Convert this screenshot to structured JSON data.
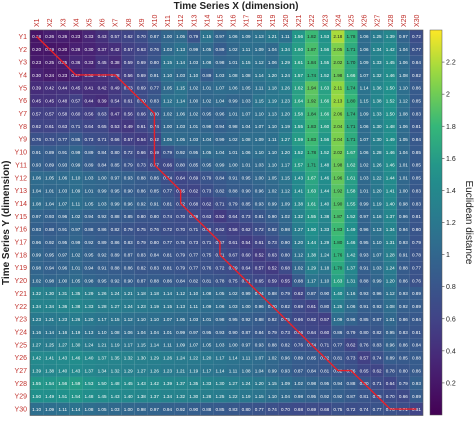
{
  "chart_data": {
    "type": "heatmap",
    "title": "Time Series X (dimension)",
    "xlabel": "",
    "ylabel": "Time Series Y (dimension)",
    "colorbar_label": "Euclidean distance",
    "colormap": "viridis",
    "clim": [
      0,
      2.4
    ],
    "colorbar_ticks": [
      0.2,
      0.4,
      0.6,
      0.8,
      1,
      1.2,
      1.4,
      1.6,
      1.8,
      2,
      2.2
    ],
    "x_categories": [
      "X1",
      "X2",
      "X3",
      "X4",
      "X5",
      "X6",
      "X7",
      "X8",
      "X9",
      "X10",
      "X11",
      "X12",
      "X13",
      "X14",
      "X15",
      "X16",
      "X17",
      "X18",
      "X19",
      "X20",
      "X21",
      "X22",
      "X23",
      "X24",
      "X25",
      "X26",
      "X27",
      "X28",
      "X29",
      "X30"
    ],
    "y_categories": [
      "Y1",
      "Y2",
      "Y3",
      "Y4",
      "Y5",
      "Y6",
      "Y7",
      "Y8",
      "Y9",
      "Y10",
      "Y11",
      "Y12",
      "Y13",
      "Y14",
      "Y15",
      "Y16",
      "Y17",
      "Y18",
      "Y19",
      "Y20",
      "Y21",
      "Y22",
      "Y23",
      "Y24",
      "Y25",
      "Y26",
      "Y27",
      "Y28",
      "Y29",
      "Y30"
    ],
    "values": [
      [
        0.18,
        0.26,
        0.26,
        0.23,
        0.33,
        0.43,
        0.57,
        0.62,
        0.7,
        0.87,
        1.0,
        1.05,
        0.79,
        1.15,
        0.97,
        1.06,
        1.09,
        1.13,
        1.21,
        1.11,
        1.56,
        1.82,
        1.53,
        2.18,
        1.78,
        1.06,
        1.25,
        1.39,
        0.97,
        0.72
      ],
      [
        0.2,
        0.19,
        0.2,
        0.28,
        0.3,
        0.37,
        0.42,
        0.57,
        0.63,
        0.76,
        1.03,
        1.13,
        0.99,
        1.05,
        0.89,
        1.02,
        1.11,
        1.09,
        1.04,
        1.34,
        1.6,
        1.87,
        1.56,
        2.05,
        1.71,
        1.06,
        1.34,
        1.42,
        1.04,
        0.77
      ],
      [
        0.23,
        0.25,
        0.25,
        0.36,
        0.33,
        0.45,
        0.38,
        0.59,
        0.69,
        0.8,
        1.15,
        1.14,
        1.03,
        1.08,
        0.98,
        1.01,
        1.15,
        1.12,
        1.06,
        1.29,
        1.61,
        1.84,
        1.55,
        2.02,
        1.7,
        1.09,
        1.33,
        1.45,
        1.06,
        0.84
      ],
      [
        0.3,
        0.24,
        0.23,
        0.27,
        0.38,
        0.41,
        0.48,
        0.56,
        0.69,
        0.91,
        1.1,
        1.03,
        1.1,
        0.89,
        1.03,
        1.08,
        1.08,
        1.14,
        1.2,
        1.24,
        1.57,
        1.74,
        1.52,
        1.98,
        1.66,
        1.07,
        1.32,
        1.46,
        1.08,
        0.82
      ],
      [
        0.39,
        0.42,
        0.44,
        0.45,
        0.41,
        0.42,
        0.49,
        0.63,
        0.69,
        0.77,
        1.05,
        1.15,
        1.02,
        1.01,
        1.07,
        1.06,
        1.05,
        1.11,
        1.18,
        1.26,
        1.62,
        1.94,
        1.63,
        2.11,
        1.74,
        1.14,
        1.36,
        1.5,
        1.1,
        0.86
      ],
      [
        0.45,
        0.45,
        0.48,
        0.57,
        0.44,
        0.39,
        0.54,
        0.61,
        0.7,
        0.83,
        1.12,
        1.14,
        1.0,
        1.02,
        1.04,
        0.99,
        1.03,
        1.15,
        1.19,
        1.23,
        1.64,
        1.92,
        1.66,
        2.13,
        1.8,
        1.15,
        1.38,
        1.52,
        1.12,
        0.85
      ],
      [
        0.57,
        0.57,
        0.58,
        0.6,
        0.56,
        0.63,
        0.47,
        0.56,
        0.66,
        0.8,
        1.02,
        1.06,
        1.02,
        0.95,
        0.96,
        1.01,
        1.07,
        1.1,
        1.13,
        1.2,
        1.58,
        1.84,
        1.66,
        2.06,
        1.74,
        1.09,
        1.33,
        1.5,
        1.08,
        0.83
      ],
      [
        0.62,
        0.61,
        0.63,
        0.71,
        0.64,
        0.65,
        0.53,
        0.49,
        0.61,
        0.74,
        1.0,
        1.03,
        1.01,
        0.98,
        0.94,
        0.98,
        1.04,
        1.07,
        1.1,
        1.19,
        1.55,
        1.83,
        1.6,
        2.04,
        1.71,
        1.06,
        1.3,
        1.48,
        1.06,
        0.81
      ],
      [
        0.76,
        0.74,
        0.77,
        0.85,
        0.73,
        0.71,
        0.66,
        0.57,
        0.54,
        0.62,
        1.05,
        1.05,
        1.03,
        1.04,
        0.99,
        1.02,
        1.08,
        1.09,
        1.11,
        1.27,
        1.59,
        1.83,
        1.56,
        2.04,
        1.71,
        1.07,
        1.3,
        1.49,
        1.05,
        0.84
      ],
      [
        0.91,
        0.89,
        0.91,
        0.99,
        0.89,
        0.84,
        0.8,
        0.72,
        0.66,
        0.59,
        0.79,
        0.92,
        0.95,
        1.05,
        1.04,
        1.01,
        1.06,
        1.1,
        1.1,
        1.2,
        1.52,
        1.78,
        1.52,
        2.02,
        1.67,
        1.06,
        1.28,
        1.46,
        1.04,
        0.85
      ],
      [
        0.93,
        0.89,
        0.93,
        0.99,
        0.89,
        0.84,
        0.85,
        0.79,
        0.73,
        0.67,
        0.66,
        0.8,
        0.85,
        0.95,
        0.99,
        1.0,
        1.01,
        1.03,
        1.1,
        1.17,
        1.57,
        1.71,
        1.48,
        1.98,
        1.62,
        1.02,
        1.26,
        1.46,
        1.01,
        0.85
      ],
      [
        1.06,
        1.05,
        1.06,
        1.1,
        1.03,
        1.0,
        0.97,
        0.93,
        0.88,
        0.86,
        0.74,
        0.64,
        0.69,
        0.79,
        0.84,
        0.91,
        0.95,
        1.0,
        1.05,
        1.15,
        1.43,
        1.67,
        1.46,
        1.96,
        1.61,
        1.03,
        1.22,
        1.44,
        1.01,
        0.85
      ],
      [
        1.04,
        1.01,
        1.03,
        1.09,
        1.01,
        0.99,
        0.95,
        0.9,
        0.86,
        0.85,
        0.77,
        0.65,
        0.62,
        0.73,
        0.82,
        0.88,
        0.9,
        0.96,
        1.02,
        1.12,
        1.41,
        1.63,
        1.44,
        1.92,
        1.58,
        1.01,
        1.2,
        1.41,
        1.0,
        0.83
      ],
      [
        1.08,
        1.04,
        1.07,
        1.11,
        1.05,
        1.03,
        0.99,
        0.96,
        0.92,
        0.91,
        0.81,
        0.72,
        0.68,
        0.62,
        0.71,
        0.79,
        0.85,
        0.93,
        0.99,
        1.09,
        1.38,
        1.61,
        1.4,
        1.9,
        1.55,
        0.99,
        1.19,
        1.4,
        0.98,
        0.83
      ],
      [
        0.97,
        0.93,
        0.96,
        1.02,
        0.94,
        0.92,
        0.88,
        0.85,
        0.8,
        0.8,
        0.74,
        0.7,
        0.69,
        0.63,
        0.52,
        0.64,
        0.73,
        0.81,
        0.9,
        1.02,
        1.32,
        1.55,
        1.38,
        1.87,
        1.52,
        0.97,
        1.16,
        1.37,
        0.96,
        0.81
      ],
      [
        0.93,
        0.88,
        0.91,
        0.97,
        0.88,
        0.86,
        0.82,
        0.79,
        0.75,
        0.76,
        0.72,
        0.7,
        0.71,
        0.68,
        0.62,
        0.56,
        0.62,
        0.72,
        0.82,
        0.98,
        1.27,
        1.5,
        1.33,
        1.83,
        1.49,
        0.96,
        1.13,
        1.34,
        0.94,
        0.8
      ],
      [
        0.96,
        0.92,
        0.95,
        0.99,
        0.92,
        0.89,
        0.86,
        0.83,
        0.79,
        0.8,
        0.77,
        0.75,
        0.73,
        0.71,
        0.67,
        0.61,
        0.54,
        0.61,
        0.73,
        0.9,
        1.2,
        1.44,
        1.29,
        1.8,
        1.46,
        0.95,
        1.1,
        1.31,
        0.93,
        0.79
      ],
      [
        0.99,
        0.95,
        0.97,
        1.02,
        0.95,
        0.92,
        0.89,
        0.87,
        0.83,
        0.84,
        0.81,
        0.79,
        0.77,
        0.75,
        0.71,
        0.67,
        0.6,
        0.52,
        0.63,
        0.8,
        1.12,
        1.38,
        1.24,
        1.76,
        1.42,
        0.93,
        1.07,
        1.28,
        0.91,
        0.78
      ],
      [
        0.98,
        0.94,
        0.96,
        1.01,
        0.94,
        0.91,
        0.88,
        0.86,
        0.82,
        0.83,
        0.81,
        0.79,
        0.77,
        0.76,
        0.72,
        0.69,
        0.64,
        0.57,
        0.52,
        0.68,
        1.02,
        1.29,
        1.18,
        1.7,
        1.37,
        0.91,
        1.03,
        1.24,
        0.88,
        0.77
      ],
      [
        1.02,
        0.98,
        1.0,
        1.05,
        0.98,
        0.95,
        0.92,
        0.9,
        0.87,
        0.88,
        0.86,
        0.84,
        0.82,
        0.81,
        0.78,
        0.75,
        0.71,
        0.65,
        0.59,
        0.55,
        0.88,
        1.17,
        1.1,
        1.63,
        1.31,
        0.88,
        0.99,
        1.2,
        0.86,
        0.76
      ],
      [
        1.32,
        1.3,
        1.31,
        1.35,
        1.29,
        1.26,
        1.24,
        1.21,
        1.18,
        1.18,
        1.14,
        1.12,
        1.1,
        1.08,
        1.05,
        1.02,
        0.99,
        0.94,
        0.88,
        0.79,
        0.62,
        0.87,
        0.9,
        1.4,
        1.16,
        0.93,
        0.96,
        1.12,
        0.93,
        0.89
      ],
      [
        1.34,
        1.34,
        1.36,
        1.38,
        1.33,
        1.28,
        1.27,
        1.24,
        1.23,
        1.19,
        1.15,
        1.13,
        1.11,
        1.09,
        1.06,
        1.03,
        1.0,
        0.96,
        0.9,
        0.82,
        0.69,
        0.61,
        0.8,
        1.25,
        1.06,
        0.91,
        0.93,
        1.08,
        0.92,
        0.89
      ],
      [
        1.23,
        1.21,
        1.23,
        1.26,
        1.2,
        1.17,
        1.15,
        1.12,
        1.1,
        1.1,
        1.07,
        1.05,
        1.03,
        1.01,
        0.98,
        0.95,
        0.92,
        0.88,
        0.82,
        0.75,
        0.66,
        0.62,
        0.57,
        1.09,
        0.96,
        0.85,
        0.87,
        1.01,
        0.86,
        0.84
      ],
      [
        1.16,
        1.14,
        1.16,
        1.19,
        1.13,
        1.1,
        1.08,
        1.06,
        1.04,
        1.04,
        1.01,
        0.99,
        0.97,
        0.95,
        0.93,
        0.9,
        0.87,
        0.84,
        0.79,
        0.73,
        0.66,
        0.64,
        0.6,
        0.86,
        0.79,
        0.8,
        0.82,
        0.95,
        0.83,
        0.81
      ],
      [
        1.27,
        1.25,
        1.27,
        1.3,
        1.24,
        1.21,
        1.19,
        1.17,
        1.15,
        1.14,
        1.11,
        1.09,
        1.07,
        1.05,
        1.03,
        1.0,
        0.97,
        0.93,
        0.88,
        0.82,
        0.76,
        0.74,
        0.71,
        0.77,
        0.62,
        0.76,
        0.83,
        0.96,
        0.86,
        0.84
      ],
      [
        1.42,
        1.41,
        1.43,
        1.46,
        1.4,
        1.37,
        1.35,
        1.32,
        1.3,
        1.29,
        1.26,
        1.24,
        1.22,
        1.2,
        1.17,
        1.14,
        1.11,
        1.07,
        1.02,
        0.96,
        0.89,
        0.85,
        0.82,
        0.81,
        0.73,
        0.57,
        0.74,
        0.89,
        0.85,
        0.88
      ],
      [
        1.39,
        1.38,
        1.4,
        1.43,
        1.37,
        1.34,
        1.32,
        1.29,
        1.27,
        1.26,
        1.23,
        1.21,
        1.19,
        1.17,
        1.14,
        1.11,
        1.08,
        1.04,
        0.99,
        0.93,
        0.87,
        0.84,
        0.81,
        0.82,
        0.76,
        0.65,
        0.62,
        0.78,
        0.8,
        0.86
      ],
      [
        1.55,
        1.54,
        1.56,
        1.59,
        1.53,
        1.5,
        1.48,
        1.45,
        1.43,
        1.42,
        1.39,
        1.37,
        1.35,
        1.33,
        1.3,
        1.27,
        1.24,
        1.2,
        1.15,
        1.09,
        1.02,
        0.98,
        0.95,
        0.94,
        0.88,
        0.8,
        0.71,
        0.64,
        0.79,
        0.93
      ],
      [
        1.5,
        1.49,
        1.51,
        1.54,
        1.48,
        1.45,
        1.43,
        1.4,
        1.38,
        1.37,
        1.34,
        1.32,
        1.3,
        1.28,
        1.25,
        1.22,
        1.19,
        1.15,
        1.1,
        1.04,
        0.98,
        0.95,
        0.92,
        0.92,
        0.87,
        0.81,
        0.75,
        0.7,
        0.66,
        0.89
      ],
      [
        1.1,
        1.09,
        1.11,
        1.14,
        1.08,
        1.05,
        1.03,
        1.0,
        0.98,
        0.97,
        0.94,
        0.92,
        0.9,
        0.88,
        0.85,
        0.83,
        0.8,
        0.77,
        0.74,
        0.7,
        0.68,
        0.69,
        0.68,
        0.75,
        0.72,
        0.74,
        0.77,
        0.76,
        0.71,
        0.61
      ]
    ],
    "warping_path": [
      [
        1,
        1
      ],
      [
        2,
        2
      ],
      [
        3,
        3
      ],
      [
        4,
        4
      ],
      [
        4,
        5
      ],
      [
        4,
        6
      ],
      [
        4,
        7
      ],
      [
        5,
        8
      ],
      [
        6,
        9
      ],
      [
        7,
        10
      ],
      [
        8,
        10
      ],
      [
        9,
        10
      ],
      [
        10,
        10
      ],
      [
        11,
        10
      ],
      [
        12,
        11
      ],
      [
        13,
        12
      ],
      [
        14,
        12
      ],
      [
        15,
        13
      ],
      [
        16,
        14
      ],
      [
        17,
        15
      ],
      [
        18,
        15
      ],
      [
        19,
        16
      ],
      [
        20,
        17
      ],
      [
        21,
        18
      ],
      [
        22,
        19
      ],
      [
        23,
        20
      ],
      [
        24,
        21
      ],
      [
        25,
        22
      ],
      [
        26,
        23
      ],
      [
        27,
        24
      ],
      [
        27,
        25
      ],
      [
        28,
        26
      ],
      [
        29,
        27
      ],
      [
        30,
        28
      ],
      [
        30,
        29
      ],
      [
        30,
        30
      ]
    ]
  },
  "colors": {
    "warping_path": "#e8202a",
    "x_tick_labels": "#c0302b",
    "y_tick_labels": "#c0302b"
  }
}
